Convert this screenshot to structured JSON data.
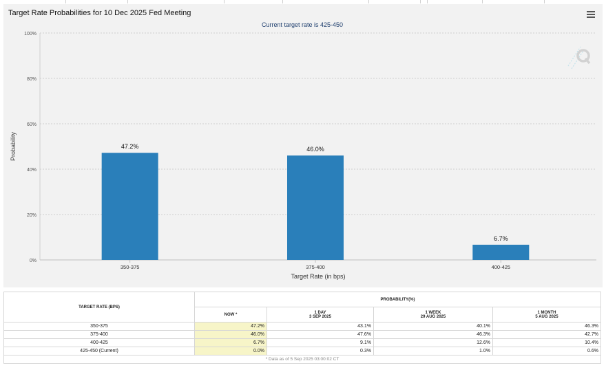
{
  "chart": {
    "title": "Target Rate Probabilities for 10 Dec 2025 Fed Meeting",
    "subtitle": "Current target rate is 425-450"
  },
  "chart_data": {
    "type": "bar",
    "title": "Target Rate Probabilities for 10 Dec 2025 Fed Meeting",
    "subtitle": "Current target rate is 425-450",
    "categories": [
      "350-375",
      "375-400",
      "400-425"
    ],
    "values": [
      47.2,
      46.0,
      6.7
    ],
    "value_labels": [
      "47.2%",
      "46.0%",
      "6.7%"
    ],
    "xlabel": "Target Rate (in bps)",
    "ylabel": "Probability",
    "ylim": [
      0,
      100
    ],
    "yticks": [
      0,
      20,
      40,
      60,
      80,
      100
    ],
    "ytick_labels": [
      "0%",
      "20%",
      "40%",
      "60%",
      "80%",
      "100%"
    ],
    "grid": true,
    "bar_color": "#2a7fba"
  },
  "table": {
    "rate_header": "TARGET RATE (BPS)",
    "prob_header": "PROBABILITY(%)",
    "columns": [
      {
        "label": "NOW *",
        "date": ""
      },
      {
        "label": "1 DAY",
        "date": "3 SEP 2025"
      },
      {
        "label": "1 WEEK",
        "date": "29 AUG 2025"
      },
      {
        "label": "1 MONTH",
        "date": "5 AUG 2025"
      }
    ],
    "rows": [
      {
        "rate": "350-375",
        "now": "47.2%",
        "day": "43.1%",
        "week": "40.1%",
        "month": "46.3%"
      },
      {
        "rate": "375-400",
        "now": "46.0%",
        "day": "47.6%",
        "week": "46.3%",
        "month": "42.7%"
      },
      {
        "rate": "400-425",
        "now": "6.7%",
        "day": "9.1%",
        "week": "12.6%",
        "month": "10.4%"
      },
      {
        "rate": "425-450 (Current)",
        "now": "0.0%",
        "day": "0.3%",
        "week": "1.0%",
        "month": "0.6%"
      }
    ],
    "note": "* Data as of 5 Sep 2025 03:00:02 CT"
  }
}
